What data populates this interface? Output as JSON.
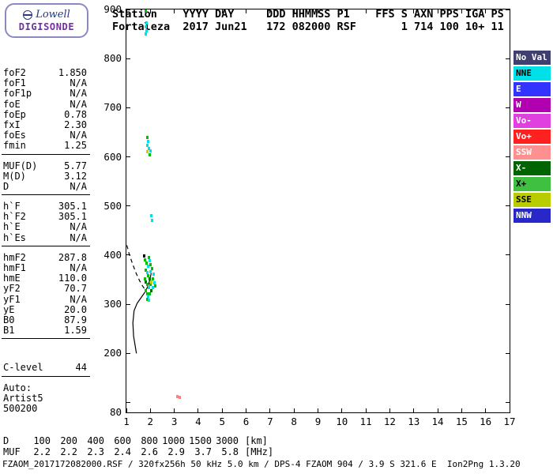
{
  "logo": {
    "line1": "Lowell",
    "line2": "DIGISONDE"
  },
  "header": {
    "line1": "Station    YYYY DAY     DDD HHMMSS P1    FFS S AXN PPS IGA PS",
    "line2": "Fortaleza  2017 Jun21   172 082000 RSF       1 714 100 10+ 11"
  },
  "panel": {
    "groups": [
      {
        "rows": [
          [
            "foF2",
            "1.850"
          ],
          [
            "foF1",
            "N/A"
          ],
          [
            "foF1p",
            "N/A"
          ],
          [
            "foE",
            "N/A"
          ],
          [
            "foEp",
            "0.78"
          ],
          [
            "fxI",
            "2.30"
          ],
          [
            "foEs",
            "N/A"
          ],
          [
            "fmin",
            "1.25"
          ]
        ]
      },
      {
        "rows": [
          [
            "MUF(D)",
            "5.77"
          ],
          [
            "M(D)",
            "3.12"
          ],
          [
            "D",
            "N/A"
          ]
        ]
      },
      {
        "rows": [
          [
            "h`F",
            "305.1"
          ],
          [
            "h`F2",
            "305.1"
          ],
          [
            "h`E",
            "N/A"
          ],
          [
            "h`Es",
            "N/A"
          ]
        ]
      },
      {
        "rows": [
          [
            "hmF2",
            "287.8"
          ],
          [
            "hmF1",
            "N/A"
          ],
          [
            "hmE",
            "110.0"
          ],
          [
            "yF2",
            "70.7"
          ],
          [
            "yF1",
            "N/A"
          ],
          [
            "yE",
            "20.0"
          ],
          [
            "B0",
            "87.9"
          ],
          [
            "B1",
            "1.59"
          ]
        ]
      },
      {
        "rows": [
          [
            "C-level",
            "44"
          ]
        ],
        "gap_before": true
      },
      {
        "rows": [
          [
            "Auto:",
            ""
          ],
          [
            "Artist5",
            ""
          ],
          [
            "500200",
            ""
          ]
        ],
        "no_rule": true
      }
    ]
  },
  "legend": {
    "items": [
      {
        "label": "No Val",
        "bg": "#404070",
        "fg": "#ffffff"
      },
      {
        "label": "NNE",
        "bg": "#00e0e8",
        "fg": "#000000"
      },
      {
        "label": "E",
        "bg": "#3333ff",
        "fg": "#ffffff"
      },
      {
        "label": "W",
        "bg": "#b000b0",
        "fg": "#ffffff"
      },
      {
        "label": "Vo-",
        "bg": "#e040e0",
        "fg": "#ffffff"
      },
      {
        "label": "Vo+",
        "bg": "#ff2020",
        "fg": "#ffffff"
      },
      {
        "label": "SSW",
        "bg": "#ff9090",
        "fg": "#ffffff"
      },
      {
        "label": "X-",
        "bg": "#006400",
        "fg": "#ffffff"
      },
      {
        "label": "X+",
        "bg": "#40c040",
        "fg": "#000000"
      },
      {
        "label": "SSE",
        "bg": "#b8cc00",
        "fg": "#000000"
      },
      {
        "label": "NNW",
        "bg": "#2828c8",
        "fg": "#ffffff"
      }
    ]
  },
  "colors": {
    "cyan": "#00e0e8",
    "green": "#00c000",
    "dkgreen": "#007000",
    "yellow": "#cfcf00",
    "red": "#ff8080",
    "black": "#000000"
  },
  "chart_data": {
    "type": "scatter",
    "description": "Digisonde ionogram: echo virtual height vs sounding frequency with Artist5 profile trace",
    "x_unit": "MHz",
    "y_unit": "km",
    "xlim": [
      1,
      17
    ],
    "ylim": [
      80,
      900
    ],
    "x_ticks": [
      1,
      2,
      3,
      4,
      5,
      6,
      7,
      8,
      9,
      10,
      11,
      12,
      13,
      14,
      15,
      16,
      17
    ],
    "y_grid": [
      100,
      200,
      300,
      400,
      500,
      600,
      700,
      800,
      900
    ],
    "y_tick_labels": [
      900,
      800,
      700,
      600,
      500,
      400,
      300,
      200,
      80
    ],
    "grid": false,
    "legend_position": "right",
    "echoes": [
      [
        1.8,
        897,
        "green"
      ],
      [
        1.83,
        872,
        "cyan"
      ],
      [
        1.82,
        864,
        "cyan"
      ],
      [
        1.85,
        857,
        "cyan"
      ],
      [
        1.8,
        851,
        "cyan"
      ],
      [
        1.88,
        640,
        "green"
      ],
      [
        1.91,
        632,
        "cyan"
      ],
      [
        1.87,
        624,
        "cyan"
      ],
      [
        1.93,
        617,
        "cyan"
      ],
      [
        1.86,
        610,
        "yellow"
      ],
      [
        1.97,
        604,
        "green"
      ],
      [
        2.02,
        612,
        "cyan"
      ],
      [
        2.05,
        480,
        "cyan"
      ],
      [
        2.06,
        471,
        "cyan"
      ],
      [
        1.73,
        399,
        "black"
      ],
      [
        1.78,
        391,
        "green"
      ],
      [
        1.84,
        384,
        "green"
      ],
      [
        1.9,
        377,
        "cyan"
      ],
      [
        1.95,
        396,
        "green"
      ],
      [
        1.98,
        388,
        "cyan"
      ],
      [
        2.0,
        380,
        "green"
      ],
      [
        1.8,
        370,
        "green"
      ],
      [
        1.86,
        364,
        "cyan"
      ],
      [
        1.92,
        358,
        "green"
      ],
      [
        1.97,
        352,
        "dkgreen"
      ],
      [
        2.02,
        366,
        "cyan"
      ],
      [
        2.07,
        372,
        "green"
      ],
      [
        2.12,
        362,
        "cyan"
      ],
      [
        1.76,
        352,
        "green"
      ],
      [
        1.82,
        346,
        "dkgreen"
      ],
      [
        1.88,
        340,
        "green"
      ],
      [
        1.94,
        334,
        "cyan"
      ],
      [
        2.0,
        340,
        "green"
      ],
      [
        2.05,
        346,
        "yellow"
      ],
      [
        2.1,
        352,
        "green"
      ],
      [
        2.16,
        344,
        "cyan"
      ],
      [
        1.8,
        328,
        "green"
      ],
      [
        1.86,
        322,
        "green"
      ],
      [
        1.92,
        316,
        "cyan"
      ],
      [
        1.98,
        322,
        "green"
      ],
      [
        2.04,
        328,
        "dkgreen"
      ],
      [
        2.1,
        334,
        "cyan"
      ],
      [
        2.2,
        338,
        "green"
      ],
      [
        1.88,
        310,
        "green"
      ],
      [
        1.95,
        308,
        "cyan"
      ],
      [
        3.12,
        112,
        "red"
      ],
      [
        3.22,
        110,
        "red"
      ]
    ],
    "profile_solid": [
      [
        1.42,
        200
      ],
      [
        1.3,
        235
      ],
      [
        1.27,
        262
      ],
      [
        1.32,
        287
      ],
      [
        1.45,
        302
      ],
      [
        1.62,
        314
      ],
      [
        1.78,
        325
      ],
      [
        1.9,
        337
      ],
      [
        1.98,
        350
      ],
      [
        2.03,
        362
      ],
      [
        2.05,
        372
      ]
    ],
    "profile_dashed": [
      [
        1.02,
        420
      ],
      [
        1.12,
        402
      ],
      [
        1.25,
        383
      ],
      [
        1.4,
        364
      ],
      [
        1.55,
        348
      ],
      [
        1.68,
        337
      ],
      [
        1.78,
        330
      ]
    ]
  },
  "dmuf": {
    "d_row": {
      "label": "D",
      "values": [
        "100",
        "200",
        "400",
        "600",
        "800",
        "1000",
        "1500",
        "3000"
      ],
      "unit": "[km]"
    },
    "muf_row": {
      "label": "MUF",
      "values": [
        "2.2",
        "2.2",
        "2.3",
        "2.4",
        "2.6",
        "2.9",
        "3.7",
        "5.8"
      ],
      "unit": "[MHz]"
    }
  },
  "footer": {
    "status_line": "FZAOM_2017172082000.RSF / 320fx256h 50 kHz 5.0 km / DPS-4 FZAOM 904 / 3.9 S 321.6 E  Ion2Png 1.3.20"
  }
}
